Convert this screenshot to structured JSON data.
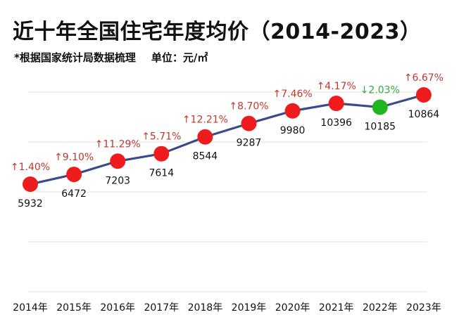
{
  "header": {
    "title": "近十年全国住宅年度均价（2014-2023）",
    "subtitle": "*根据国家统计局数据梳理",
    "unit_label": "单位：元/㎡"
  },
  "colors": {
    "line": "#3b4a8c",
    "up_marker": "#ee1c1c",
    "down_marker": "#22b522",
    "up_text": "#c0392b",
    "down_text": "#3aa83a",
    "grid": "#e6e6e6"
  },
  "chart_data": {
    "type": "line",
    "title": "近十年全国住宅年度均价（2014-2023）",
    "xlabel": "",
    "ylabel": "元/㎡",
    "categories": [
      "2014年",
      "2015年",
      "2016年",
      "2017年",
      "2018年",
      "2019年",
      "2020年",
      "2021年",
      "2022年",
      "2023年"
    ],
    "series": [
      {
        "name": "住宅年度均价",
        "values": [
          5932,
          6472,
          7203,
          7614,
          8544,
          9287,
          9980,
          10396,
          10185,
          10864
        ],
        "changes": [
          "↑1.40%",
          "↑9.10%",
          "↑11.29%",
          "↑5.71%",
          "↑12.21%",
          "↑8.70%",
          "↑7.46%",
          "↑4.17%",
          "↓2.03%",
          "↑6.67%"
        ],
        "direction": [
          "up",
          "up",
          "up",
          "up",
          "up",
          "up",
          "up",
          "up",
          "down",
          "up"
        ]
      }
    ],
    "grid": true,
    "legend": "none"
  }
}
